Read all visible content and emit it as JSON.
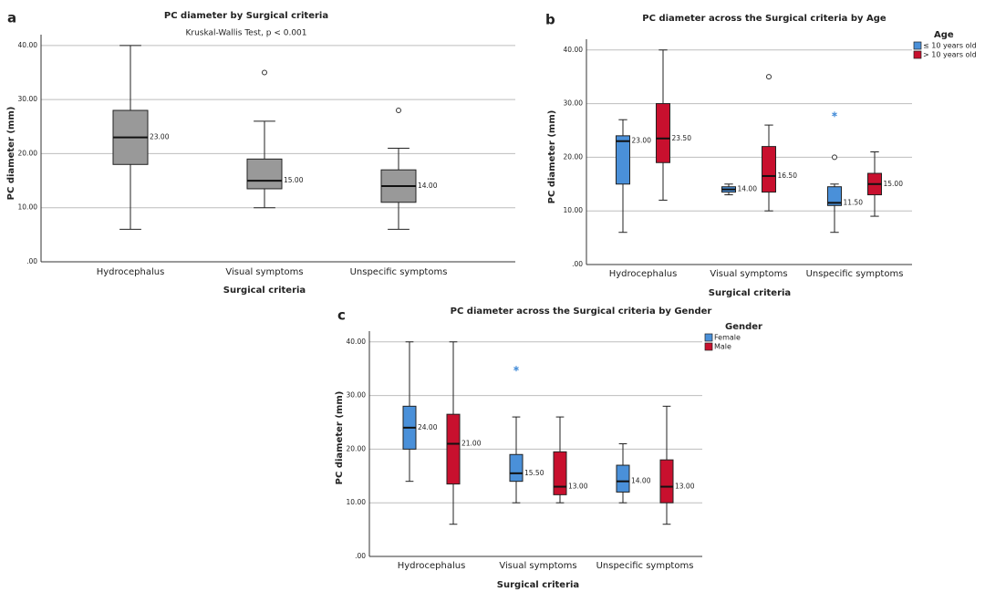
{
  "chart_data": [
    {
      "type": "box",
      "panel_label": "a",
      "title": "PC diameter by Surgical criteria",
      "subtitle": "Kruskal-Wallis Test, p < 0.001",
      "x_label": "Surgical criteria",
      "y_label": "PC diameter (mm)",
      "categories": [
        "Hydrocephalus",
        "Visual symptoms",
        "Unspecific symptoms"
      ],
      "ylim": [
        0,
        42
      ],
      "yticks": [
        {
          "value": 0,
          "label": ".00"
        },
        {
          "value": 10,
          "label": "10.00"
        },
        {
          "value": 20,
          "label": "20.00"
        },
        {
          "value": 30,
          "label": "30.00"
        },
        {
          "value": 40,
          "label": "40.00"
        }
      ],
      "grid": true,
      "series": [
        {
          "name": null,
          "color": "#999999",
          "min": [
            6,
            10,
            6
          ],
          "q1": [
            18,
            13.5,
            11
          ],
          "median": [
            23,
            15,
            14
          ],
          "q3": [
            28,
            19,
            17
          ],
          "max": [
            40,
            26,
            21
          ],
          "median_labels": [
            "23.00",
            "15.00",
            "14.00"
          ],
          "outliers": [
            [],
            [
              35
            ],
            [
              28
            ]
          ],
          "extremes": [
            [],
            [],
            []
          ]
        }
      ]
    },
    {
      "type": "box",
      "panel_label": "b",
      "title": "PC diameter across the Surgical criteria by Age",
      "x_label": "Surgical criteria",
      "y_label": "PC diameter (mm)",
      "legend_title": "Age",
      "categories": [
        "Hydrocephalus",
        "Visual symptoms",
        "Unspecific symptoms"
      ],
      "ylim": [
        0,
        42
      ],
      "yticks": [
        {
          "value": 0,
          "label": ".00"
        },
        {
          "value": 10,
          "label": "10.00"
        },
        {
          "value": 20,
          "label": "20.00"
        },
        {
          "value": 30,
          "label": "30.00"
        },
        {
          "value": 40,
          "label": "40.00"
        }
      ],
      "grid": true,
      "series": [
        {
          "name": "≤ 10 years old",
          "color": "#4a90d9",
          "min": [
            6,
            13,
            6
          ],
          "q1": [
            15,
            13.5,
            11
          ],
          "median": [
            23,
            14,
            11.5
          ],
          "q3": [
            24,
            14.5,
            14.5
          ],
          "max": [
            27,
            15,
            15
          ],
          "median_labels": [
            "23.00",
            "14.00",
            "11.50"
          ],
          "outliers": [
            [],
            [],
            [
              20
            ]
          ],
          "extremes": [
            [],
            [],
            [
              28
            ]
          ]
        },
        {
          "name": "> 10 years old",
          "color": "#c8102e",
          "min": [
            12,
            10,
            9
          ],
          "q1": [
            19,
            13.5,
            13
          ],
          "median": [
            23.5,
            16.5,
            15
          ],
          "q3": [
            30,
            22,
            17
          ],
          "max": [
            40,
            26,
            21
          ],
          "median_labels": [
            "23.50",
            "16.50",
            "15.00"
          ],
          "outliers": [
            [],
            [
              35
            ],
            []
          ],
          "extremes": [
            [],
            [],
            []
          ]
        }
      ]
    },
    {
      "type": "box",
      "panel_label": "c",
      "title": "PC diameter across the Surgical criteria by Gender",
      "x_label": "Surgical criteria",
      "y_label": "PC diameter (mm)",
      "legend_title": "Gender",
      "categories": [
        "Hydrocephalus",
        "Visual symptoms",
        "Unspecific symptoms"
      ],
      "ylim": [
        0,
        42
      ],
      "yticks": [
        {
          "value": 0,
          "label": ".00"
        },
        {
          "value": 10,
          "label": "10.00"
        },
        {
          "value": 20,
          "label": "20.00"
        },
        {
          "value": 30,
          "label": "30.00"
        },
        {
          "value": 40,
          "label": "40.00"
        }
      ],
      "grid": true,
      "series": [
        {
          "name": "Female",
          "color": "#4a90d9",
          "min": [
            14,
            10,
            10
          ],
          "q1": [
            20,
            14,
            12
          ],
          "median": [
            24,
            15.5,
            14
          ],
          "q3": [
            28,
            19,
            17
          ],
          "max": [
            40,
            26,
            21
          ],
          "median_labels": [
            "24.00",
            "15.50",
            "14.00"
          ],
          "outliers": [
            [],
            [],
            []
          ],
          "extremes": [
            [],
            [
              35
            ],
            []
          ]
        },
        {
          "name": "Male",
          "color": "#c8102e",
          "min": [
            6,
            10,
            6
          ],
          "q1": [
            13.5,
            11.5,
            10
          ],
          "median": [
            21,
            13,
            13
          ],
          "q3": [
            26.5,
            19.5,
            18
          ],
          "max": [
            40,
            26,
            28
          ],
          "median_labels": [
            "21.00",
            "13.00",
            "13.00"
          ],
          "outliers": [
            [],
            [],
            []
          ],
          "extremes": [
            [],
            [],
            []
          ]
        }
      ]
    }
  ]
}
